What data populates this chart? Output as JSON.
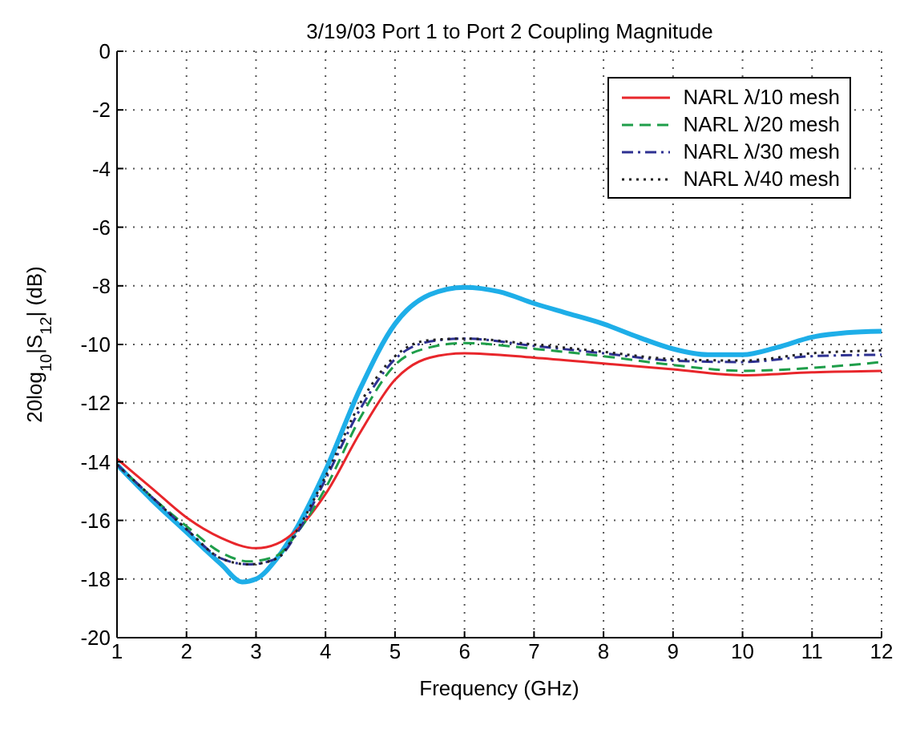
{
  "chart_data": {
    "type": "line",
    "title": "3/19/03 Port 1 to Port 2 Coupling Magnitude",
    "xlabel": "Frequency (GHz)",
    "ylabel": "20log$_{10}$|S$_{12}$| (dB)",
    "xlim": [
      1,
      12
    ],
    "xticks": [
      1,
      2,
      3,
      4,
      5,
      6,
      7,
      8,
      9,
      10,
      11,
      12
    ],
    "ylim": [
      -20,
      0
    ],
    "yticks": [
      -20,
      -18,
      -16,
      -14,
      -12,
      -10,
      -8,
      -6,
      -4,
      -2,
      0
    ],
    "grid": true,
    "legend": "top right",
    "marker": "none",
    "series": [
      {
        "color": "#1eaee8",
        "line_style": "solid",
        "x": [
          1,
          1.5,
          2,
          2.5,
          2.8,
          3,
          3.3,
          3.6,
          4,
          4.5,
          5,
          5.5,
          6,
          6.5,
          7,
          7.5,
          8,
          8.5,
          9,
          9.5,
          10,
          10.5,
          11,
          11.5,
          12
        ],
        "values": [
          -14.1,
          -15.3,
          -16.4,
          -17.5,
          -18.1,
          -18,
          -17.3,
          -16.2,
          -14.3,
          -11.5,
          -9.3,
          -8.3,
          -8.05,
          -8.2,
          -8.6,
          -8.95,
          -9.3,
          -9.75,
          -10.15,
          -10.35,
          -10.35,
          -10.1,
          -9.75,
          -9.6,
          -9.55
        ]
      },
      {
        "name": "NARL λ/10 mesh",
        "color": "#e8262b",
        "line_style": "solid",
        "x": [
          1,
          1.5,
          2,
          2.5,
          3,
          3.3,
          3.6,
          4,
          4.5,
          5,
          5.5,
          6,
          7,
          8,
          9,
          10,
          11,
          12
        ],
        "values": [
          -13.9,
          -14.9,
          -15.9,
          -16.6,
          -16.95,
          -16.8,
          -16.3,
          -15.1,
          -13,
          -11.2,
          -10.45,
          -10.3,
          -10.45,
          -10.65,
          -10.85,
          -11.05,
          -10.95,
          -10.9
        ]
      },
      {
        "name": "NARL λ/20 mesh",
        "color": "#1f9e4a",
        "line_style": "dashed",
        "x": [
          1,
          1.5,
          2,
          2.5,
          2.9,
          3.3,
          3.6,
          4,
          4.5,
          5,
          5.5,
          6,
          7,
          8,
          9,
          10,
          11,
          12
        ],
        "values": [
          -14.1,
          -15.2,
          -16.2,
          -17.1,
          -17.4,
          -17.2,
          -16.4,
          -14.9,
          -12.5,
          -10.7,
          -10.1,
          -9.95,
          -10.15,
          -10.4,
          -10.7,
          -10.9,
          -10.8,
          -10.6
        ]
      },
      {
        "name": "NARL λ/30 mesh",
        "color": "#2e3192",
        "line_style": "dashdot",
        "x": [
          1,
          1.5,
          2,
          2.5,
          2.9,
          3.3,
          3.6,
          4,
          4.5,
          5,
          5.5,
          6,
          7,
          8,
          9,
          10,
          11,
          12
        ],
        "values": [
          -14.1,
          -15.2,
          -16.3,
          -17.3,
          -17.5,
          -17.3,
          -16.4,
          -14.6,
          -12.2,
          -10.5,
          -9.9,
          -9.8,
          -10.05,
          -10.3,
          -10.55,
          -10.6,
          -10.4,
          -10.35
        ]
      },
      {
        "name": "NARL λ/40 mesh",
        "color": "#222222",
        "line_style": "dotted",
        "x": [
          1,
          1.5,
          2,
          2.5,
          2.9,
          3.3,
          3.6,
          4,
          4.5,
          5,
          5.5,
          6,
          7,
          8,
          9,
          10,
          11,
          12
        ],
        "values": [
          -14.1,
          -15.2,
          -16.3,
          -17.3,
          -17.5,
          -17.3,
          -16.3,
          -14.5,
          -12,
          -10.4,
          -9.85,
          -9.8,
          -10,
          -10.25,
          -10.5,
          -10.55,
          -10.3,
          -10.2
        ]
      }
    ]
  }
}
